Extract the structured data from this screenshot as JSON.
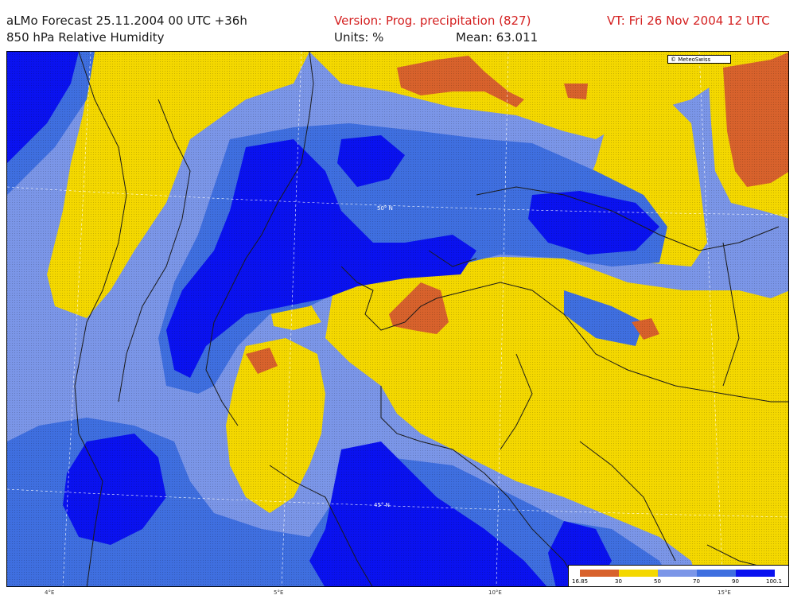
{
  "header": {
    "line1_left": "aLMo Forecast 25.11.2004 00 UTC +36h",
    "line2_left": "850 hPa  Relative Humidity",
    "version": "Version: Prog. precipitation (827)",
    "units": "Units: %",
    "mean": "Mean: 63.011",
    "valid_time": "VT: Fri 26 Nov 2004 12 UTC"
  },
  "credit": "© MeteoSwiss",
  "map_labels": {
    "lat_upper": "50° N",
    "lat_lower": "45° N"
  },
  "bottom_ticks": [
    "4°E",
    "5°E",
    "10°E",
    "15°E"
  ],
  "legend": {
    "levels": [
      "16.85",
      "30",
      "50",
      "70",
      "90",
      "100.1"
    ],
    "classes": [
      {
        "range": "16.85-30",
        "color": "#d8622c"
      },
      {
        "range": "30-50",
        "color": "#f4d800"
      },
      {
        "range": "50-70",
        "color": "#7b96e8"
      },
      {
        "range": "70-90",
        "color": "#3f6fe0"
      },
      {
        "range": "90-100.1",
        "color": "#0a12f0"
      }
    ]
  },
  "colors": {
    "orange": "#d8622c",
    "yellow": "#f4d800",
    "light_blue": "#7b96e8",
    "mid_blue": "#3f6fe0",
    "deep_blue": "#0a12f0",
    "header_red": "#d42020"
  }
}
